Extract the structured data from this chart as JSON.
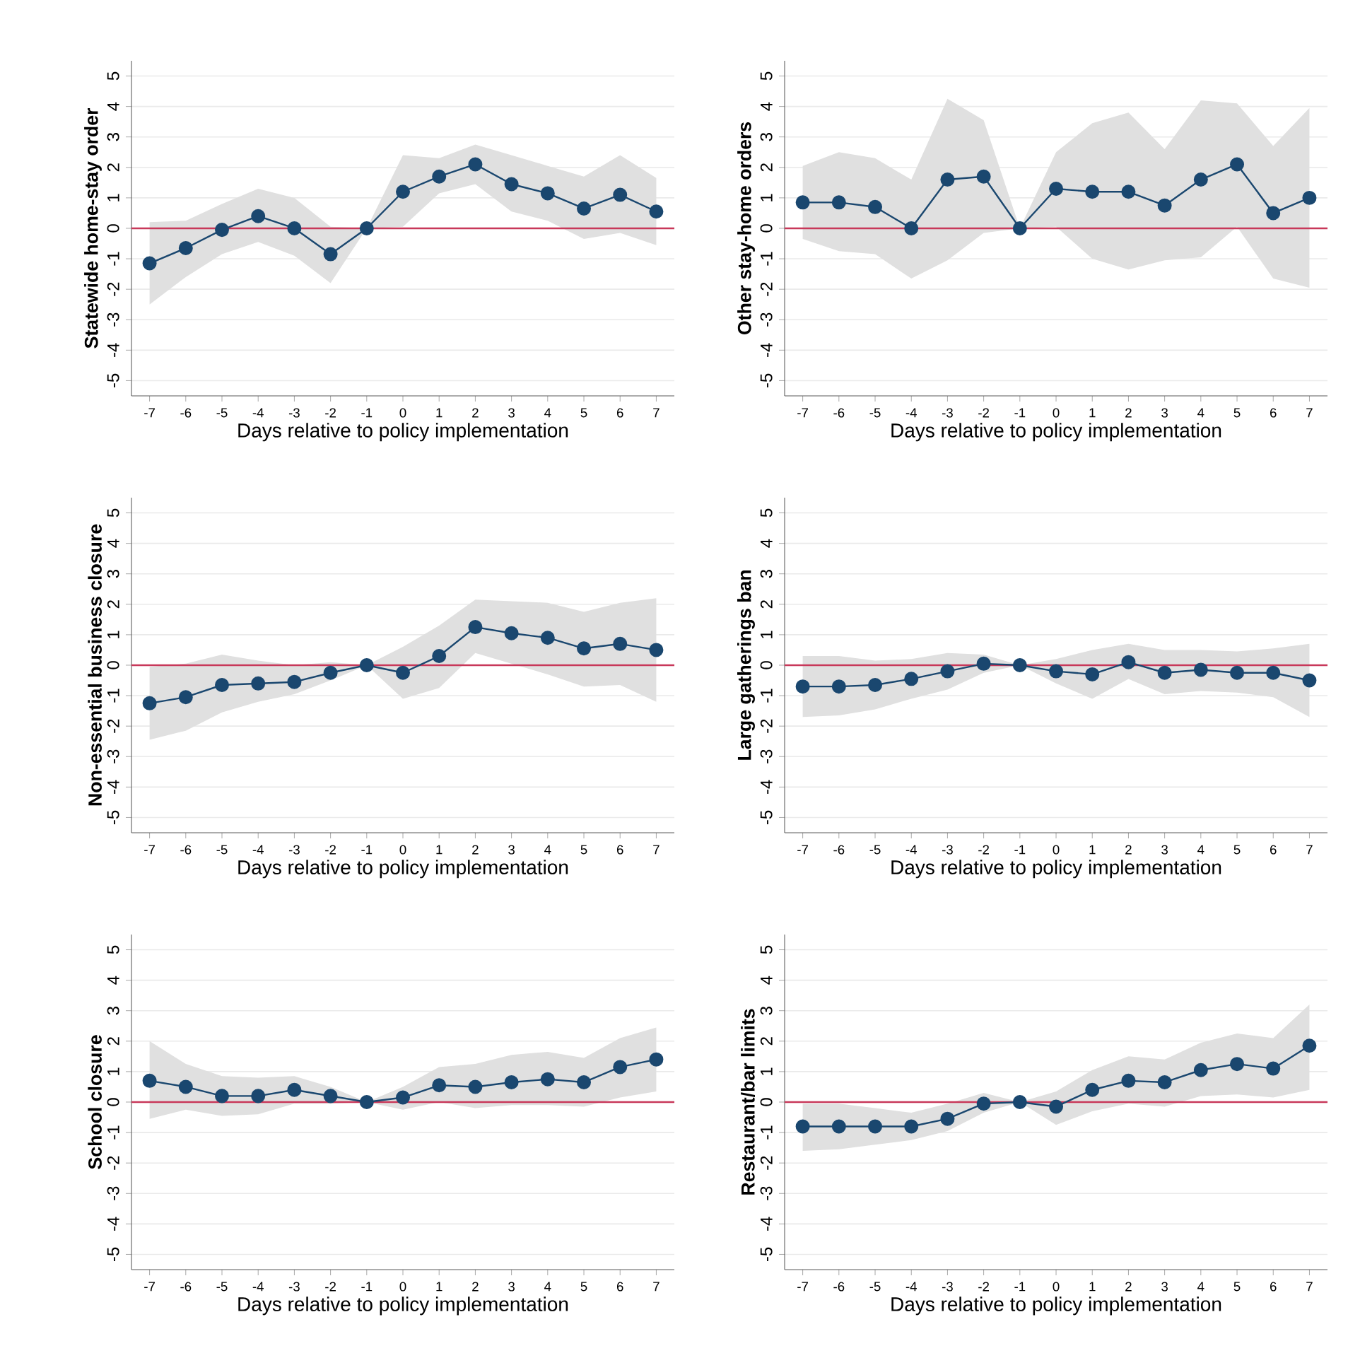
{
  "chart_data": [
    {
      "type": "line",
      "xlabel": "Days relative to policy implementation",
      "ylabel": "Statewide home-stay order",
      "x": [
        -7,
        -6,
        -5,
        -4,
        -3,
        -2,
        -1,
        0,
        1,
        2,
        3,
        4,
        5,
        6,
        7
      ],
      "xlim": [
        -7.5,
        7.5
      ],
      "ylim": [
        -5.5,
        5.5
      ],
      "xticks": [
        -7,
        -6,
        -5,
        -4,
        -3,
        -2,
        -1,
        0,
        1,
        2,
        3,
        4,
        5,
        6,
        7
      ],
      "yticks": [
        -5,
        -4,
        -3,
        -2,
        -1,
        0,
        1,
        2,
        3,
        4,
        5
      ],
      "grid": "y",
      "marker": "circle",
      "line_style": "solid",
      "ref_lines": [
        {
          "axis": "y",
          "value": 0,
          "color": "#c8385a"
        }
      ],
      "series": [
        {
          "color": "#1a476f",
          "values": [
            -1.15,
            -0.65,
            -0.05,
            0.4,
            0.0,
            -0.85,
            0,
            1.2,
            1.7,
            2.1,
            1.45,
            1.15,
            0.65,
            1.1,
            0.55
          ],
          "lower": [
            -2.5,
            -1.6,
            -0.85,
            -0.45,
            -0.9,
            -1.8,
            0,
            0.05,
            1.15,
            1.45,
            0.55,
            0.25,
            -0.35,
            -0.15,
            -0.55
          ],
          "upper": [
            0.2,
            0.25,
            0.8,
            1.3,
            1.0,
            0.05,
            0,
            2.4,
            2.3,
            2.75,
            2.4,
            2.05,
            1.7,
            2.4,
            1.65
          ]
        }
      ]
    },
    {
      "type": "line",
      "xlabel": "Days relative to policy implementation",
      "ylabel": "Other stay-home orders",
      "x": [
        -7,
        -6,
        -5,
        -4,
        -3,
        -2,
        -1,
        0,
        1,
        2,
        3,
        4,
        5,
        6,
        7
      ],
      "xlim": [
        -7.5,
        7.5
      ],
      "ylim": [
        -5.5,
        5.5
      ],
      "xticks": [
        -7,
        -6,
        -5,
        -4,
        -3,
        -2,
        -1,
        0,
        1,
        2,
        3,
        4,
        5,
        6,
        7
      ],
      "yticks": [
        -5,
        -4,
        -3,
        -2,
        -1,
        0,
        1,
        2,
        3,
        4,
        5
      ],
      "grid": "y",
      "marker": "circle",
      "line_style": "solid",
      "ref_lines": [
        {
          "axis": "y",
          "value": 0,
          "color": "#c8385a"
        }
      ],
      "series": [
        {
          "color": "#1a476f",
          "values": [
            0.85,
            0.85,
            0.7,
            0,
            1.6,
            1.7,
            0,
            1.3,
            1.2,
            1.2,
            0.75,
            1.6,
            2.1,
            0.5,
            1.0
          ],
          "lower": [
            -0.35,
            -0.75,
            -0.85,
            -1.65,
            -1.05,
            -0.15,
            0,
            0.05,
            -1.0,
            -1.35,
            -1.05,
            -0.95,
            0.05,
            -1.65,
            -1.95
          ],
          "upper": [
            2.05,
            2.5,
            2.3,
            1.6,
            4.25,
            3.55,
            0,
            2.5,
            3.45,
            3.8,
            2.6,
            4.2,
            4.1,
            2.7,
            3.95
          ]
        }
      ]
    },
    {
      "type": "line",
      "xlabel": "Days relative to policy implementation",
      "ylabel": "Non-essential business closure",
      "x": [
        -7,
        -6,
        -5,
        -4,
        -3,
        -2,
        -1,
        0,
        1,
        2,
        3,
        4,
        5,
        6,
        7
      ],
      "xlim": [
        -7.5,
        7.5
      ],
      "ylim": [
        -5.5,
        5.5
      ],
      "xticks": [
        -7,
        -6,
        -5,
        -4,
        -3,
        -2,
        -1,
        0,
        1,
        2,
        3,
        4,
        5,
        6,
        7
      ],
      "yticks": [
        -5,
        -4,
        -3,
        -2,
        -1,
        0,
        1,
        2,
        3,
        4,
        5
      ],
      "grid": "y",
      "marker": "circle",
      "line_style": "solid",
      "ref_lines": [
        {
          "axis": "y",
          "value": 0,
          "color": "#c8385a"
        }
      ],
      "series": [
        {
          "color": "#1a476f",
          "values": [
            -1.25,
            -1.05,
            -0.65,
            -0.6,
            -0.55,
            -0.25,
            0,
            -0.25,
            0.3,
            1.25,
            1.05,
            0.9,
            0.55,
            0.7,
            0.5
          ],
          "lower": [
            -2.45,
            -2.15,
            -1.55,
            -1.2,
            -0.95,
            -0.5,
            0,
            -1.1,
            -0.75,
            0.4,
            0.05,
            -0.3,
            -0.7,
            -0.65,
            -1.2
          ],
          "upper": [
            -0.05,
            0.05,
            0.35,
            0.15,
            0.0,
            0.1,
            0,
            0.6,
            1.3,
            2.15,
            2.1,
            2.05,
            1.75,
            2.05,
            2.2
          ]
        }
      ]
    },
    {
      "type": "line",
      "xlabel": "Days relative to policy implementation",
      "ylabel": "Large gatherings ban",
      "x": [
        -7,
        -6,
        -5,
        -4,
        -3,
        -2,
        -1,
        0,
        1,
        2,
        3,
        4,
        5,
        6,
        7
      ],
      "xlim": [
        -7.5,
        7.5
      ],
      "ylim": [
        -5.5,
        5.5
      ],
      "xticks": [
        -7,
        -6,
        -5,
        -4,
        -3,
        -2,
        -1,
        0,
        1,
        2,
        3,
        4,
        5,
        6,
        7
      ],
      "yticks": [
        -5,
        -4,
        -3,
        -2,
        -1,
        0,
        1,
        2,
        3,
        4,
        5
      ],
      "grid": "y",
      "marker": "circle",
      "line_style": "solid",
      "ref_lines": [
        {
          "axis": "y",
          "value": 0,
          "color": "#c8385a"
        }
      ],
      "series": [
        {
          "color": "#1a476f",
          "values": [
            -0.7,
            -0.7,
            -0.65,
            -0.45,
            -0.2,
            0.05,
            0,
            -0.2,
            -0.3,
            0.1,
            -0.25,
            -0.15,
            -0.25,
            -0.25,
            -0.5
          ],
          "lower": [
            -1.7,
            -1.65,
            -1.45,
            -1.1,
            -0.8,
            -0.25,
            0,
            -0.6,
            -1.1,
            -0.45,
            -0.95,
            -0.85,
            -0.9,
            -1.05,
            -1.7
          ],
          "upper": [
            0.3,
            0.3,
            0.15,
            0.2,
            0.4,
            0.35,
            0,
            0.2,
            0.5,
            0.7,
            0.5,
            0.5,
            0.45,
            0.55,
            0.7
          ]
        }
      ]
    },
    {
      "type": "line",
      "xlabel": "Days relative to policy implementation",
      "ylabel": "School closure",
      "x": [
        -7,
        -6,
        -5,
        -4,
        -3,
        -2,
        -1,
        0,
        1,
        2,
        3,
        4,
        5,
        6,
        7
      ],
      "xlim": [
        -7.5,
        7.5
      ],
      "ylim": [
        -5.5,
        5.5
      ],
      "xticks": [
        -7,
        -6,
        -5,
        -4,
        -3,
        -2,
        -1,
        0,
        1,
        2,
        3,
        4,
        5,
        6,
        7
      ],
      "yticks": [
        -5,
        -4,
        -3,
        -2,
        -1,
        0,
        1,
        2,
        3,
        4,
        5
      ],
      "grid": "y",
      "marker": "circle",
      "line_style": "solid",
      "ref_lines": [
        {
          "axis": "y",
          "value": 0,
          "color": "#c8385a"
        }
      ],
      "series": [
        {
          "color": "#1a476f",
          "values": [
            0.7,
            0.5,
            0.2,
            0.2,
            0.4,
            0.2,
            0,
            0.15,
            0.55,
            0.5,
            0.65,
            0.75,
            0.65,
            1.15,
            1.4
          ],
          "lower": [
            -0.55,
            -0.25,
            -0.45,
            -0.4,
            -0.05,
            -0.05,
            0,
            -0.25,
            0.0,
            -0.2,
            -0.1,
            -0.1,
            -0.15,
            0.15,
            0.35
          ],
          "upper": [
            2.0,
            1.25,
            0.85,
            0.8,
            0.85,
            0.5,
            0,
            0.5,
            1.15,
            1.25,
            1.55,
            1.65,
            1.45,
            2.1,
            2.45
          ]
        }
      ]
    },
    {
      "type": "line",
      "xlabel": "Days relative to policy implementation",
      "ylabel": "Restaurant/bar limits",
      "x": [
        -7,
        -6,
        -5,
        -4,
        -3,
        -2,
        -1,
        0,
        1,
        2,
        3,
        4,
        5,
        6,
        7
      ],
      "xlim": [
        -7.5,
        7.5
      ],
      "ylim": [
        -5.5,
        5.5
      ],
      "xticks": [
        -7,
        -6,
        -5,
        -4,
        -3,
        -2,
        -1,
        0,
        1,
        2,
        3,
        4,
        5,
        6,
        7
      ],
      "yticks": [
        -5,
        -4,
        -3,
        -2,
        -1,
        0,
        1,
        2,
        3,
        4,
        5
      ],
      "grid": "y",
      "marker": "circle",
      "line_style": "solid",
      "ref_lines": [
        {
          "axis": "y",
          "value": 0,
          "color": "#c8385a"
        }
      ],
      "series": [
        {
          "color": "#1a476f",
          "values": [
            -0.8,
            -0.8,
            -0.8,
            -0.8,
            -0.55,
            -0.05,
            0,
            -0.15,
            0.4,
            0.7,
            0.65,
            1.05,
            1.25,
            1.1,
            1.85
          ],
          "lower": [
            -1.6,
            -1.55,
            -1.4,
            -1.25,
            -0.95,
            -0.35,
            0,
            -0.75,
            -0.3,
            -0.05,
            -0.15,
            0.2,
            0.25,
            0.15,
            0.4
          ],
          "upper": [
            -0.05,
            -0.05,
            -0.2,
            -0.35,
            -0.05,
            0.3,
            0,
            0.35,
            1.05,
            1.5,
            1.4,
            1.95,
            2.25,
            2.1,
            3.2
          ]
        }
      ]
    }
  ]
}
